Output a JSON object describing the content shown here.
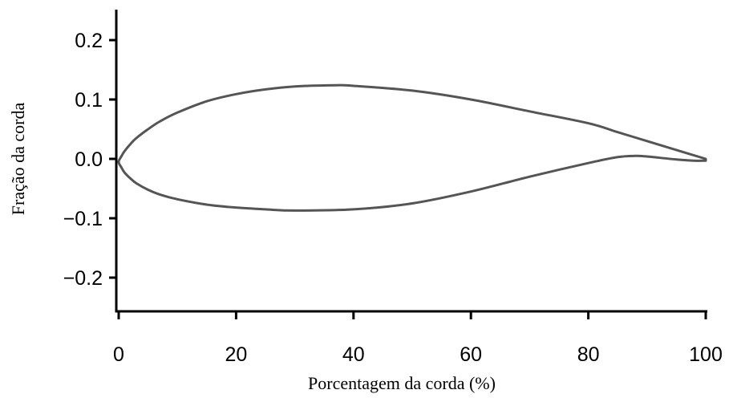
{
  "chart_data": {
    "type": "line",
    "title": "",
    "xlabel": "Porcentagem da corda (%)",
    "ylabel": "Fração da corda",
    "xlim": [
      0,
      100
    ],
    "ylim": [
      -0.25,
      0.25
    ],
    "x_ticks": [
      0,
      20,
      40,
      60,
      80,
      100
    ],
    "x_tick_labels": [
      "0",
      "20",
      "40",
      "60",
      "80",
      "100"
    ],
    "y_ticks": [
      0.2,
      0.1,
      0.0,
      -0.1,
      -0.2
    ],
    "y_tick_labels": [
      "0.2",
      "0.1",
      "0.0",
      "−0.1",
      "−0.2"
    ],
    "grid": false,
    "legend": "none",
    "colors": {
      "line": "#555555",
      "axis": "#000000"
    },
    "series": [
      {
        "x": [
          100,
          95,
          90,
          85,
          80,
          70,
          60,
          50,
          40,
          37,
          30,
          25,
          20,
          15,
          10,
          7,
          5,
          3,
          2,
          1,
          0.5,
          0,
          0.5,
          1,
          2,
          3,
          5,
          7,
          10,
          15,
          20,
          25,
          30,
          40,
          50,
          60,
          70,
          80,
          85,
          88,
          90,
          95,
          98,
          100
        ],
        "y": [
          0.0,
          0.015,
          0.03,
          0.045,
          0.06,
          0.08,
          0.1,
          0.115,
          0.123,
          0.124,
          0.122,
          0.117,
          0.109,
          0.097,
          0.078,
          0.063,
          0.05,
          0.035,
          0.025,
          0.013,
          0.005,
          -0.005,
          -0.015,
          -0.023,
          -0.033,
          -0.041,
          -0.052,
          -0.06,
          -0.068,
          -0.077,
          -0.082,
          -0.085,
          -0.087,
          -0.085,
          -0.075,
          -0.055,
          -0.03,
          -0.007,
          0.003,
          0.005,
          0.004,
          -0.001,
          -0.003,
          -0.003
        ]
      }
    ]
  }
}
